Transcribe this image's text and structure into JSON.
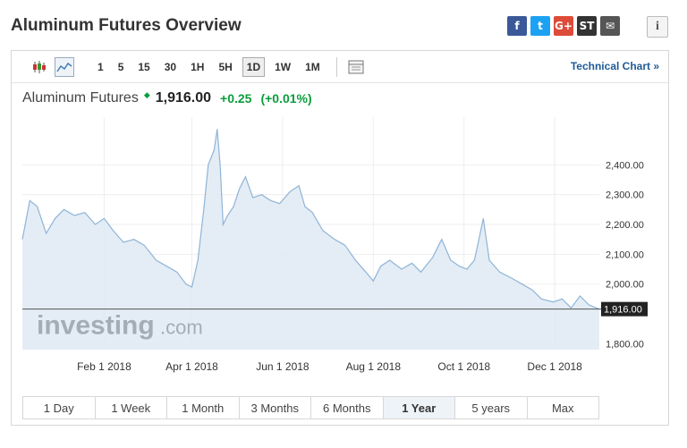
{
  "page": {
    "title": "Aluminum Futures Overview",
    "info_label": "i"
  },
  "share": [
    {
      "icon": "facebook-icon",
      "label": "f",
      "color": "#3b5998"
    },
    {
      "icon": "twitter-icon",
      "label": "t",
      "color": "#1da1f2"
    },
    {
      "icon": "google-plus-icon",
      "label": "G+",
      "color": "#dd4b39"
    },
    {
      "icon": "stocktwits-icon",
      "label": "ST",
      "color": "#333333"
    },
    {
      "icon": "email-icon",
      "label": "✉",
      "color": "#555555"
    }
  ],
  "toolbar": {
    "intervals": [
      "1",
      "5",
      "15",
      "30",
      "1H",
      "5H",
      "1D",
      "1W",
      "1M"
    ],
    "active_interval": "1D",
    "technical_chart": "Technical Chart »"
  },
  "quote": {
    "name": "Aluminum Futures",
    "price": "1,916.00",
    "change": "+0.25",
    "change_pct": "(+0.01%)"
  },
  "watermark": {
    "brand": "investing",
    "suffix": ".com"
  },
  "ranges": [
    "1 Day",
    "1 Week",
    "1 Month",
    "3 Months",
    "6 Months",
    "1 Year",
    "5 years",
    "Max"
  ],
  "active_range": "1 Year",
  "colors": {
    "line": "#8fb4d8",
    "fill": "#dde8f3",
    "up": "#0a9d3c",
    "last_price_bg": "#222222"
  },
  "chart_data": {
    "type": "area",
    "title": "",
    "xlabel": "",
    "ylabel": "",
    "x_ticks": [
      "Feb 1 2018",
      "Apr 1 2018",
      "Jun 1 2018",
      "Aug 1 2018",
      "Oct 1 2018",
      "Dec 1 2018"
    ],
    "y_ticks": [
      "2,400.00",
      "2,300.00",
      "2,200.00",
      "2,100.00",
      "2,000.00",
      "1,800.00"
    ],
    "y_tick_values": [
      2400,
      2300,
      2200,
      2100,
      2000,
      1800
    ],
    "ylim": [
      1780,
      2560
    ],
    "xlim": [
      "2017-12-08",
      "2018-12-31"
    ],
    "last_price": 1916,
    "last_price_label": "1,916.00",
    "grid": true,
    "series": [
      {
        "name": "",
        "points": [
          [
            "2017-12-08",
            2150
          ],
          [
            "2017-12-13",
            2280
          ],
          [
            "2017-12-18",
            2260
          ],
          [
            "2017-12-24",
            2170
          ],
          [
            "2017-12-30",
            2220
          ],
          [
            "2018-01-05",
            2250
          ],
          [
            "2018-01-12",
            2230
          ],
          [
            "2018-01-19",
            2240
          ],
          [
            "2018-01-26",
            2200
          ],
          [
            "2018-02-01",
            2220
          ],
          [
            "2018-02-07",
            2180
          ],
          [
            "2018-02-14",
            2140
          ],
          [
            "2018-02-21",
            2150
          ],
          [
            "2018-02-28",
            2130
          ],
          [
            "2018-03-08",
            2080
          ],
          [
            "2018-03-15",
            2060
          ],
          [
            "2018-03-22",
            2040
          ],
          [
            "2018-03-28",
            2000
          ],
          [
            "2018-04-01",
            1990
          ],
          [
            "2018-04-05",
            2080
          ],
          [
            "2018-04-09",
            2250
          ],
          [
            "2018-04-12",
            2400
          ],
          [
            "2018-04-16",
            2450
          ],
          [
            "2018-04-18",
            2520
          ],
          [
            "2018-04-20",
            2400
          ],
          [
            "2018-04-22",
            2200
          ],
          [
            "2018-04-25",
            2230
          ],
          [
            "2018-04-29",
            2260
          ],
          [
            "2018-05-03",
            2320
          ],
          [
            "2018-05-07",
            2360
          ],
          [
            "2018-05-12",
            2290
          ],
          [
            "2018-05-18",
            2300
          ],
          [
            "2018-05-24",
            2280
          ],
          [
            "2018-05-30",
            2270
          ],
          [
            "2018-06-06",
            2310
          ],
          [
            "2018-06-12",
            2330
          ],
          [
            "2018-06-16",
            2260
          ],
          [
            "2018-06-21",
            2240
          ],
          [
            "2018-06-28",
            2180
          ],
          [
            "2018-07-06",
            2150
          ],
          [
            "2018-07-13",
            2130
          ],
          [
            "2018-07-20",
            2080
          ],
          [
            "2018-07-27",
            2040
          ],
          [
            "2018-08-01",
            2010
          ],
          [
            "2018-08-06",
            2060
          ],
          [
            "2018-08-12",
            2080
          ],
          [
            "2018-08-20",
            2050
          ],
          [
            "2018-08-27",
            2070
          ],
          [
            "2018-09-02",
            2040
          ],
          [
            "2018-09-10",
            2090
          ],
          [
            "2018-09-16",
            2150
          ],
          [
            "2018-09-22",
            2080
          ],
          [
            "2018-09-28",
            2060
          ],
          [
            "2018-10-03",
            2050
          ],
          [
            "2018-10-08",
            2080
          ],
          [
            "2018-10-14",
            2220
          ],
          [
            "2018-10-18",
            2080
          ],
          [
            "2018-10-25",
            2040
          ],
          [
            "2018-11-02",
            2020
          ],
          [
            "2018-11-09",
            2000
          ],
          [
            "2018-11-16",
            1980
          ],
          [
            "2018-11-22",
            1950
          ],
          [
            "2018-11-30",
            1940
          ],
          [
            "2018-12-06",
            1950
          ],
          [
            "2018-12-12",
            1920
          ],
          [
            "2018-12-18",
            1960
          ],
          [
            "2018-12-24",
            1930
          ],
          [
            "2018-12-31",
            1916
          ]
        ]
      }
    ]
  }
}
